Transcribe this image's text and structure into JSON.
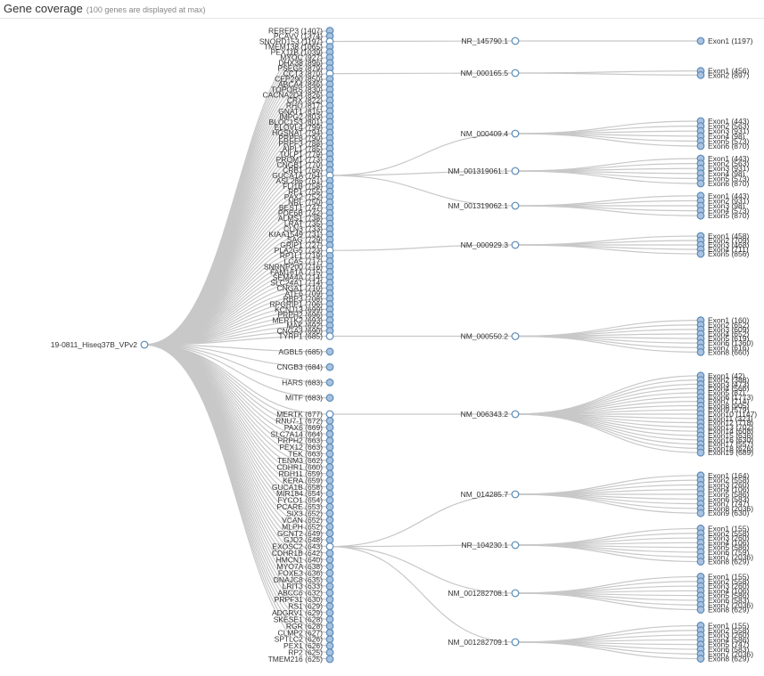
{
  "header": {
    "title": "Gene coverage",
    "subtitle": "(100 genes are displayed at max)"
  },
  "colors": {
    "collapsed_fill": "#a8c2e0",
    "expanded_fill": "#ffffff",
    "node_stroke": "#5a8ab8",
    "link": "#c8c8c8"
  },
  "root": {
    "label": "19-0811_Hiseq37B_VPv2"
  },
  "genes": [
    {
      "label": "REREP3 (1407)"
    },
    {
      "label": "PCAVV (1374)"
    },
    {
      "label": "SNORD153 (1197)",
      "transcript": "NR_145790.1"
    },
    {
      "label": "TMEM138 (1065)"
    },
    {
      "label": "PEX11B (1039)"
    },
    {
      "label": "MYOC (927)"
    },
    {
      "label": "DHX38 (896)"
    },
    {
      "label": "PSEG5 (879)"
    },
    {
      "label": "CCT3 (870)",
      "transcript": "NM_000165.5"
    },
    {
      "label": "CEP290 (850)"
    },
    {
      "label": "ABCA4 (846)"
    },
    {
      "label": "TOPORS (830)"
    },
    {
      "label": "CACNA2D4 (826)"
    },
    {
      "label": "CRX (822)"
    },
    {
      "label": "RHO (817)"
    },
    {
      "label": "GNAT1 (815)"
    },
    {
      "label": "IMPG2 (803)"
    },
    {
      "label": "BLOC1S3 (801)"
    },
    {
      "label": "ELOVL4 (799)"
    },
    {
      "label": "HGSNAT (794)"
    },
    {
      "label": "PRPF8 (790)"
    },
    {
      "label": "PRPF3 (788)"
    },
    {
      "label": "AIPL1 (785)"
    },
    {
      "label": "TULP1 (779)"
    },
    {
      "label": "PROM1 (773)"
    },
    {
      "label": "CNGB1 (770)"
    },
    {
      "label": "CRB1 (766)"
    },
    {
      "label": "GUCA1A (764)",
      "transcript": [
        "NM_000409.4",
        "NM_001319061.1",
        "NM_001319062.1"
      ]
    },
    {
      "label": "ASL286 (761)"
    },
    {
      "label": "FLI1B (758)"
    },
    {
      "label": "RP1 (755)"
    },
    {
      "label": "PAX2 (752)"
    },
    {
      "label": "NRL (750)"
    },
    {
      "label": "BEST1 (747)"
    },
    {
      "label": "PDE6B (742)"
    },
    {
      "label": "ALMS1 (738)"
    },
    {
      "label": "LRAT (735)"
    },
    {
      "label": "CLN3 (733)"
    },
    {
      "label": "KIAA1549 (731)"
    },
    {
      "label": "SAG (729)"
    },
    {
      "label": "GRIP1 (727)"
    },
    {
      "label": "PLA2G5 (723)",
      "transcript": "NM_000929.3"
    },
    {
      "label": "RP1L1 (719)"
    },
    {
      "label": "LCA5 (717)"
    },
    {
      "label": "SNRNP200 (716)"
    },
    {
      "label": "FAM161A (715)"
    },
    {
      "label": "SEMA4A (714)"
    },
    {
      "label": "SLC24A1 (714)"
    },
    {
      "label": "CNGA1 (710)"
    },
    {
      "label": "ATF6 (709)"
    },
    {
      "label": "RBP3 (708)"
    },
    {
      "label": "RPGRIP1 (706)"
    },
    {
      "label": "KCNJ13 (699)"
    },
    {
      "label": "PRPH2 (696)"
    },
    {
      "label": "MERTK2 (693)"
    },
    {
      "label": "MAK (692)"
    },
    {
      "label": "CNGA3 (690)"
    },
    {
      "label": "TYRP1 (685)",
      "transcript": "NM_000550.2"
    },
    {
      "label": "AGBL5 (685)"
    },
    {
      "label": "CNGB3 (684)"
    },
    {
      "label": "HARS (683)"
    },
    {
      "label": "MITF (683)"
    },
    {
      "label": "MERTK (677)",
      "transcript": "NM_006343.2"
    },
    {
      "label": "RNU7-1 (672)"
    },
    {
      "label": "PAX6 (669)"
    },
    {
      "label": "SLC7A14 (664)"
    },
    {
      "label": "PRPH2 (663)"
    },
    {
      "label": "PEX12 (663)"
    },
    {
      "label": "TEK (663)"
    },
    {
      "label": "TENM3 (662)"
    },
    {
      "label": "CDHR1 (660)"
    },
    {
      "label": "RDH11 (659)"
    },
    {
      "label": "KERA (659)"
    },
    {
      "label": "GUCA1B (658)"
    },
    {
      "label": "MIR184 (654)"
    },
    {
      "label": "FYCO1 (654)"
    },
    {
      "label": "PCARE (653)"
    },
    {
      "label": "SIX3 (652)"
    },
    {
      "label": "VCAN (652)"
    },
    {
      "label": "MLPH (652)"
    },
    {
      "label": "GCNT2 (649)"
    },
    {
      "label": "GJD2 (648)"
    },
    {
      "label": "EXOSC2 (643)",
      "transcript": [
        "NM_014285.7",
        "NR_104230.1",
        "NM_001282708.1",
        "NM_001282709.1"
      ]
    },
    {
      "label": "CDHR1B (642)"
    },
    {
      "label": "HMCN1 (640)"
    },
    {
      "label": "MYO7A (638)"
    },
    {
      "label": "FOXE3 (636)"
    },
    {
      "label": "DNAJC8 (635)"
    },
    {
      "label": "LRIT3 (633)"
    },
    {
      "label": "ABCC6 (632)"
    },
    {
      "label": "PRPF31 (630)"
    },
    {
      "label": "RS1 (629)"
    },
    {
      "label": "ADGRV1 (629)"
    },
    {
      "label": "SKESE1 (628)"
    },
    {
      "label": "RGR (628)"
    },
    {
      "label": "CLMP2 (627)"
    },
    {
      "label": "SPTLC2 (626)"
    },
    {
      "label": "PEX1 (626)"
    },
    {
      "label": "RP2 (625)"
    },
    {
      "label": "TMEM216 (625)"
    }
  ],
  "transcripts": [
    {
      "label": "NR_145790.1",
      "exons": [
        "Exon1 (1197)"
      ]
    },
    {
      "label": "NM_000165.5",
      "exons": [
        "Exon1 (456)",
        "Exon2 (897)"
      ]
    },
    {
      "label": "NM_000409.4",
      "exons": [
        "Exon1 (443)",
        "Exon2 (563)",
        "Exon3 (931)",
        "Exon4 (98)",
        "Exon5 (573)",
        "Exon6 (870)"
      ]
    },
    {
      "label": "NM_001319061.1",
      "exons": [
        "Exon1 (443)",
        "Exon2 (563)",
        "Exon3 (931)",
        "Exon4 (98)",
        "Exon5 (573)",
        "Exon6 (870)"
      ]
    },
    {
      "label": "NM_001319062.1",
      "exons": [
        "Exon1 (443)",
        "Exon2 (931)",
        "Exon3 (98)",
        "Exon4 (573)",
        "Exon5 (870)"
      ]
    },
    {
      "label": "NM_000929.3",
      "exons": [
        "Exon1 (458)",
        "Exon2 (709)",
        "Exon3 (468)",
        "Exon4 (711)",
        "Exon5 (856)"
      ]
    },
    {
      "label": "NM_000550.2",
      "exons": [
        "Exon1 (160)",
        "Exon2 (652)",
        "Exon3 (609)",
        "Exon4 (652)",
        "Exon5 (619)",
        "Exon6 (1360)",
        "Exon7 (616)",
        "Exon8 (660)"
      ]
    },
    {
      "label": "NM_006343.2",
      "exons": [
        "Exon1 (42)",
        "Exon2 (388)",
        "Exon3 (473)",
        "Exon4 (566)",
        "Exon5 (87)",
        "Exon6 (1773)",
        "Exon7 (714)",
        "Exon8 (905)",
        "Exon9 (579)",
        "Exon10 (1147)",
        "Exon11 (323)",
        "Exon12 (718)",
        "Exon13 (702)",
        "Exon14 (608)",
        "Exon15 (636)",
        "Exon16 (630)",
        "Exon17 (557)",
        "Exon18 (626)",
        "Exon19 (689)"
      ]
    },
    {
      "label": "NM_014285.7",
      "exons": [
        "Exon1 (164)",
        "Exon2 (558)",
        "Exon3 (260)",
        "Exon4 (106)",
        "Exon5 (586)",
        "Exon6 (583)",
        "Exon7 (747)",
        "Exon8 (2036)",
        "Exon9 (630)"
      ]
    },
    {
      "label": "NR_104230.1",
      "exons": [
        "Exon1 (155)",
        "Exon2 (558)",
        "Exon3 (260)",
        "Exon4 (106)",
        "Exon5 (586)",
        "Exon6 (759)",
        "Exon7 (2036)",
        "Exon8 (629)"
      ]
    },
    {
      "label": "NM_001282708.1",
      "exons": [
        "Exon1 (155)",
        "Exon2 (558)",
        "Exon3 (260)",
        "Exon4 (106)",
        "Exon5 (586)",
        "Exon6 (583)",
        "Exon7 (2036)",
        "Exon8 (629)"
      ]
    },
    {
      "label": "NM_001282709.1",
      "exons": [
        "Exon1 (155)",
        "Exon2 (558)",
        "Exon3 (260)",
        "Exon4 (586)",
        "Exon5 (747)",
        "Exon6 (583)",
        "Exon7 (2036)",
        "Exon8 (629)"
      ]
    }
  ]
}
